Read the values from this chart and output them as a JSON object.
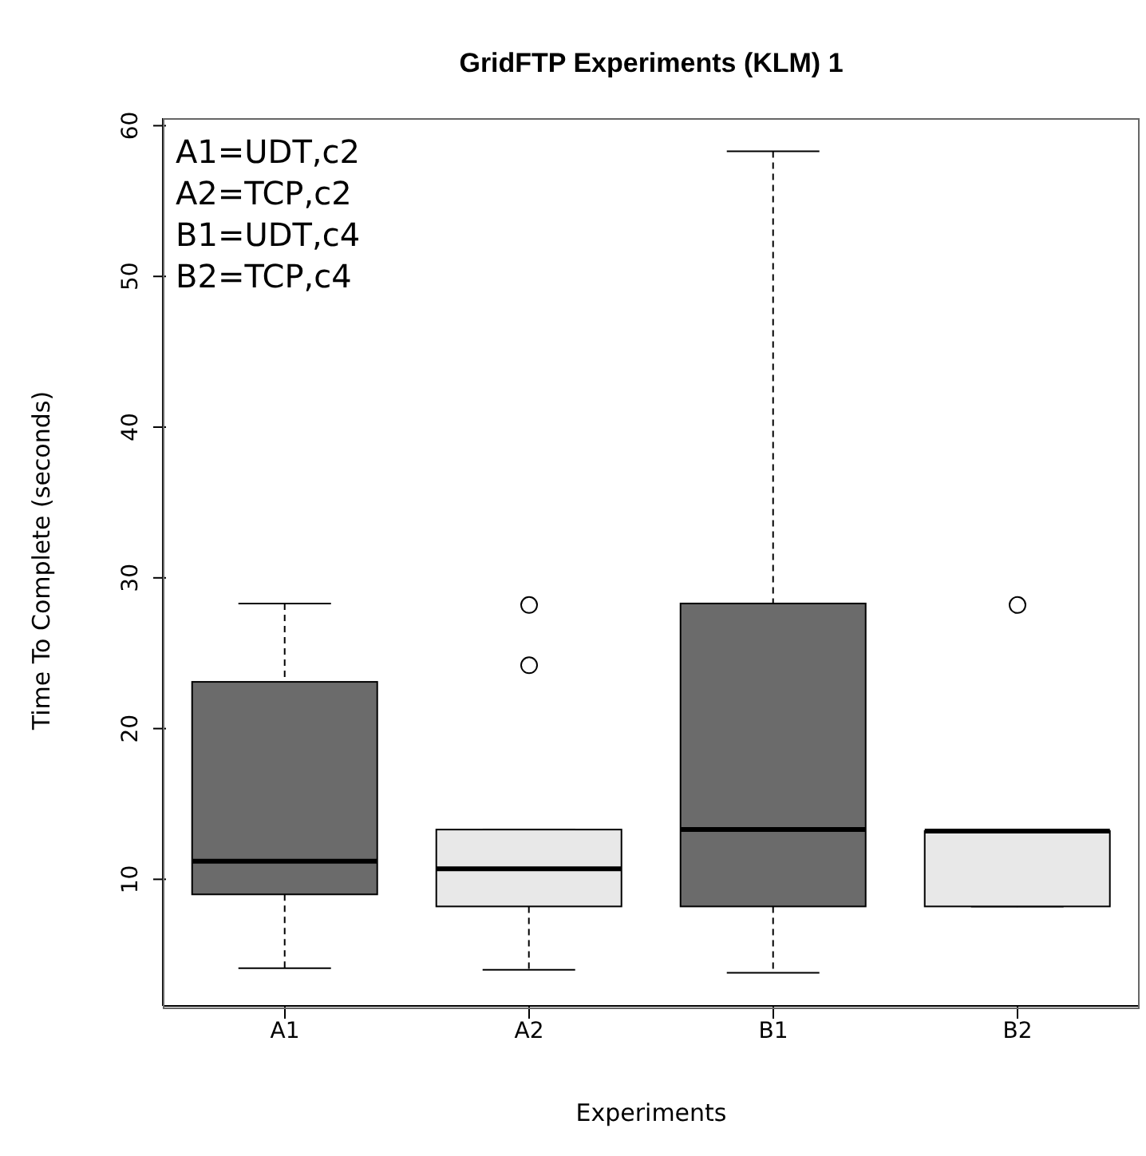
{
  "chart_data": {
    "type": "box",
    "title": "GridFTP Experiments (KLM) 1",
    "xlabel": "Experiments",
    "ylabel": "Time To Complete (seconds)",
    "annotations": [
      "A1=UDT,c2",
      "A2=TCP,c2",
      "B1=UDT,c4",
      "B2=TCP,c4"
    ],
    "categories": [
      "A1",
      "A2",
      "B1",
      "B2"
    ],
    "boxes": [
      {
        "low": 4.1,
        "q1": 9.0,
        "median": 11.2,
        "q3": 23.1,
        "high": 28.3
      },
      {
        "low": 4.0,
        "q1": 8.2,
        "median": 10.7,
        "q3": 13.3,
        "high": 13.3,
        "outliers": [
          28.2,
          24.2
        ]
      },
      {
        "low": 3.8,
        "q1": 8.2,
        "median": 13.3,
        "q3": 28.3,
        "high": 58.3
      },
      {
        "low": 8.2,
        "q1": 8.2,
        "median": 13.2,
        "q3": 13.2,
        "high": 13.2,
        "outliers": [
          28.2
        ]
      }
    ],
    "colors": [
      "#6b6b6b",
      "#e8e8e8",
      "#6b6b6b",
      "#e8e8e8"
    ],
    "ylim": [
      1.6,
      60.5
    ],
    "yticks": [
      10,
      20,
      30,
      40,
      50,
      60
    ]
  }
}
